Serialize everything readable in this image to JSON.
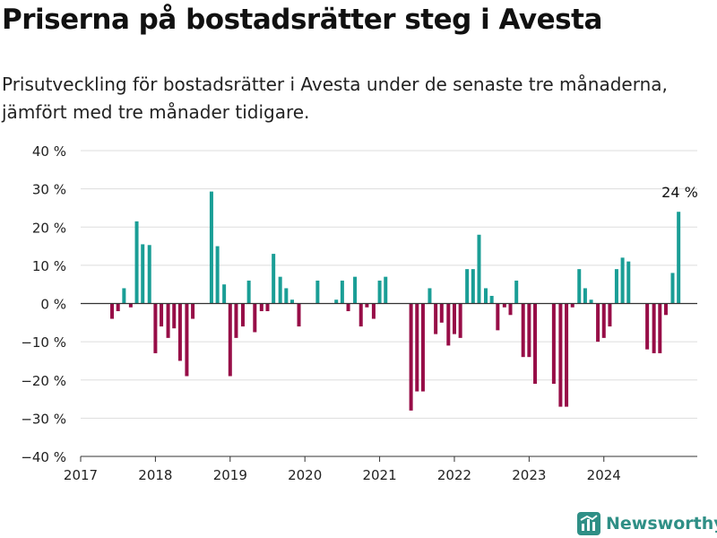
{
  "header": {
    "title": "Priserna på bostadsrätter steg i Avesta",
    "subtitle": "Prisutveckling för bostadsrätter i Avesta under de senaste tre månaderna, jämfört med tre månader tidigare."
  },
  "brand": {
    "name": "Newsworthy",
    "icon": "newsworthy-logo-icon"
  },
  "colors": {
    "positive": "#1a9e96",
    "negative": "#970d47",
    "grid": "#dddddd",
    "axis": "#333333"
  },
  "chart_data": {
    "type": "bar",
    "ylim": [
      -40,
      40
    ],
    "yticks": [
      -40,
      -30,
      -20,
      -10,
      0,
      10,
      20,
      30,
      40
    ],
    "ytick_suffix": " %",
    "xlim": [
      2017.0,
      2025.25
    ],
    "xticks": [
      2017,
      2018,
      2019,
      2020,
      2021,
      2022,
      2023,
      2024
    ],
    "grid": true,
    "annotation": {
      "text": "24 %",
      "x": 2024.92,
      "y": 24
    },
    "points": [
      {
        "x": 2017.42,
        "y": -4
      },
      {
        "x": 2017.5,
        "y": -2
      },
      {
        "x": 2017.58,
        "y": 4
      },
      {
        "x": 2017.67,
        "y": -1
      },
      {
        "x": 2017.75,
        "y": 21.5
      },
      {
        "x": 2017.83,
        "y": 15.5
      },
      {
        "x": 2017.92,
        "y": 15.3
      },
      {
        "x": 2018.0,
        "y": -13
      },
      {
        "x": 2018.08,
        "y": -6
      },
      {
        "x": 2018.17,
        "y": -9
      },
      {
        "x": 2018.25,
        "y": -6.5
      },
      {
        "x": 2018.33,
        "y": -15
      },
      {
        "x": 2018.42,
        "y": -19
      },
      {
        "x": 2018.5,
        "y": -4
      },
      {
        "x": 2018.75,
        "y": 29.3
      },
      {
        "x": 2018.83,
        "y": 15
      },
      {
        "x": 2018.92,
        "y": 5
      },
      {
        "x": 2019.0,
        "y": -19
      },
      {
        "x": 2019.08,
        "y": -9
      },
      {
        "x": 2019.17,
        "y": -6
      },
      {
        "x": 2019.25,
        "y": 6
      },
      {
        "x": 2019.33,
        "y": -7.5
      },
      {
        "x": 2019.42,
        "y": -2
      },
      {
        "x": 2019.5,
        "y": -2
      },
      {
        "x": 2019.58,
        "y": 13
      },
      {
        "x": 2019.67,
        "y": 7
      },
      {
        "x": 2019.75,
        "y": 4
      },
      {
        "x": 2019.83,
        "y": 1
      },
      {
        "x": 2019.92,
        "y": -6
      },
      {
        "x": 2020.17,
        "y": 6
      },
      {
        "x": 2020.42,
        "y": 1
      },
      {
        "x": 2020.5,
        "y": 6
      },
      {
        "x": 2020.58,
        "y": -2
      },
      {
        "x": 2020.67,
        "y": 7
      },
      {
        "x": 2020.75,
        "y": -6
      },
      {
        "x": 2020.83,
        "y": -1
      },
      {
        "x": 2020.92,
        "y": -4
      },
      {
        "x": 2021.0,
        "y": 6
      },
      {
        "x": 2021.08,
        "y": 7
      },
      {
        "x": 2021.42,
        "y": -28
      },
      {
        "x": 2021.5,
        "y": -23
      },
      {
        "x": 2021.58,
        "y": -23
      },
      {
        "x": 2021.67,
        "y": 4
      },
      {
        "x": 2021.75,
        "y": -8
      },
      {
        "x": 2021.83,
        "y": -5
      },
      {
        "x": 2021.92,
        "y": -11
      },
      {
        "x": 2022.0,
        "y": -8
      },
      {
        "x": 2022.08,
        "y": -9
      },
      {
        "x": 2022.17,
        "y": 9
      },
      {
        "x": 2022.25,
        "y": 9
      },
      {
        "x": 2022.33,
        "y": 18
      },
      {
        "x": 2022.42,
        "y": 4
      },
      {
        "x": 2022.5,
        "y": 2
      },
      {
        "x": 2022.58,
        "y": -7
      },
      {
        "x": 2022.67,
        "y": -1
      },
      {
        "x": 2022.75,
        "y": -3
      },
      {
        "x": 2022.83,
        "y": 6
      },
      {
        "x": 2022.92,
        "y": -14
      },
      {
        "x": 2023.0,
        "y": -14
      },
      {
        "x": 2023.08,
        "y": -21
      },
      {
        "x": 2023.33,
        "y": -21
      },
      {
        "x": 2023.42,
        "y": -27
      },
      {
        "x": 2023.5,
        "y": -27
      },
      {
        "x": 2023.58,
        "y": -1
      },
      {
        "x": 2023.67,
        "y": 9
      },
      {
        "x": 2023.75,
        "y": 4
      },
      {
        "x": 2023.83,
        "y": 1
      },
      {
        "x": 2023.92,
        "y": -10
      },
      {
        "x": 2024.0,
        "y": -9
      },
      {
        "x": 2024.08,
        "y": -6
      },
      {
        "x": 2024.17,
        "y": 9
      },
      {
        "x": 2024.25,
        "y": 12
      },
      {
        "x": 2024.33,
        "y": 11
      },
      {
        "x": 2024.58,
        "y": -12
      },
      {
        "x": 2024.67,
        "y": -13
      },
      {
        "x": 2024.75,
        "y": -13
      },
      {
        "x": 2024.83,
        "y": -3
      },
      {
        "x": 2024.92,
        "y": 8
      },
      {
        "x": 2025.0,
        "y": 24
      }
    ]
  }
}
